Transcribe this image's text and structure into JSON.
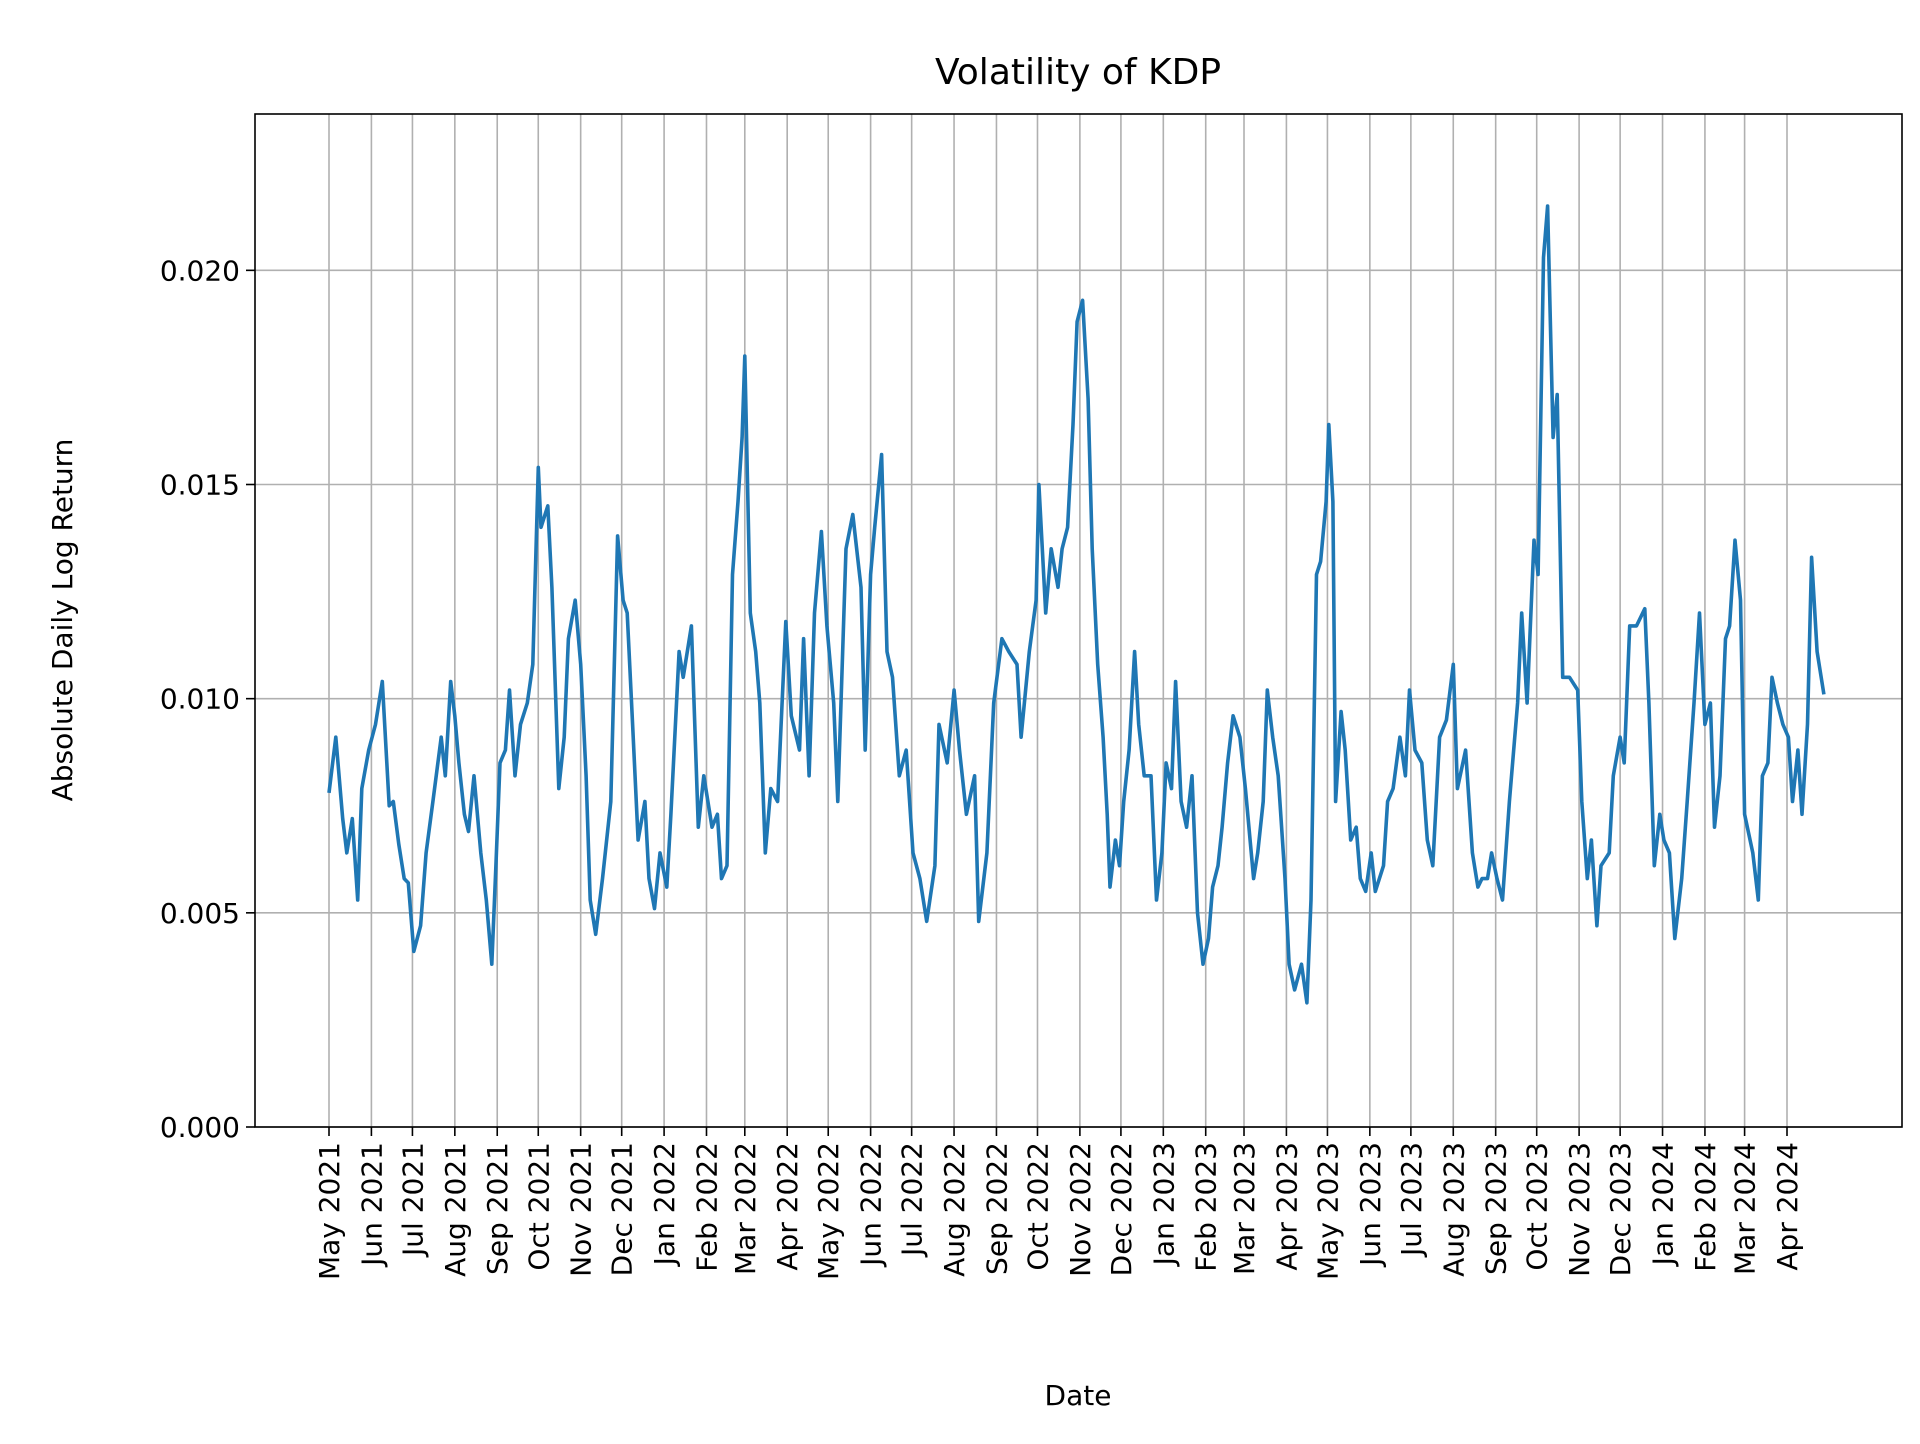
{
  "chart_data": {
    "type": "line",
    "title": "Volatility of KDP",
    "xlabel": "Date",
    "ylabel": "Absolute Daily Log Return",
    "ylim": [
      0,
      0.02365
    ],
    "yticks": [
      "0.000",
      "0.005",
      "0.010",
      "0.015",
      "0.020"
    ],
    "ytick_values": [
      0,
      0.005,
      0.01,
      0.015,
      0.02
    ],
    "xticks": [
      "May 2021",
      "Jun 2021",
      "Jul 2021",
      "Aug 2021",
      "Sep 2021",
      "Oct 2021",
      "Nov 2021",
      "Dec 2021",
      "Jan 2022",
      "Feb 2022",
      "Mar 2022",
      "Apr 2022",
      "May 2022",
      "Jun 2022",
      "Jul 2022",
      "Aug 2022",
      "Sep 2022",
      "Oct 2022",
      "Nov 2022",
      "Dec 2022",
      "Jan 2023",
      "Feb 2023",
      "Mar 2023",
      "Apr 2023",
      "May 2023",
      "Jun 2023",
      "Jul 2023",
      "Aug 2023",
      "Sep 2023",
      "Oct 2023",
      "Nov 2023",
      "Dec 2023",
      "Jan 2024",
      "Feb 2024",
      "Mar 2024",
      "Apr 2024"
    ],
    "xtick_dates": [
      "2021-05-01",
      "2021-06-01",
      "2021-07-01",
      "2021-08-01",
      "2021-09-01",
      "2021-10-01",
      "2021-11-01",
      "2021-12-01",
      "2022-01-01",
      "2022-02-01",
      "2022-03-01",
      "2022-04-01",
      "2022-05-01",
      "2022-06-01",
      "2022-07-01",
      "2022-08-01",
      "2022-09-01",
      "2022-10-01",
      "2022-11-01",
      "2022-12-01",
      "2023-01-01",
      "2023-02-01",
      "2023-03-01",
      "2023-04-01",
      "2023-05-01",
      "2023-06-01",
      "2023-07-01",
      "2023-08-01",
      "2023-09-01",
      "2023-10-01",
      "2023-11-01",
      "2023-12-01",
      "2024-01-01",
      "2024-02-01",
      "2024-03-01",
      "2024-04-01"
    ],
    "grid": true,
    "color": "#1f77b4",
    "series": [
      {
        "x": [
          "2021-05-01",
          "2021-05-06",
          "2021-05-11",
          "2021-05-14",
          "2021-05-18",
          "2021-05-22",
          "2021-05-25",
          "2021-05-30",
          "2021-06-04",
          "2021-06-09",
          "2021-06-14",
          "2021-06-17",
          "2021-06-21",
          "2021-06-25",
          "2021-06-28",
          "2021-07-02",
          "2021-07-07",
          "2021-07-11",
          "2021-07-16",
          "2021-07-22",
          "2021-07-25",
          "2021-07-29",
          "2021-08-01",
          "2021-08-04",
          "2021-08-08",
          "2021-08-11",
          "2021-08-15",
          "2021-08-20",
          "2021-08-24",
          "2021-08-28",
          "2021-08-31",
          "2021-09-03",
          "2021-09-07",
          "2021-09-10",
          "2021-09-14",
          "2021-09-18",
          "2021-09-23",
          "2021-09-27",
          "2021-10-01",
          "2021-10-03",
          "2021-10-08",
          "2021-10-11",
          "2021-10-16",
          "2021-10-20",
          "2021-10-23",
          "2021-10-28",
          "2021-11-01",
          "2021-11-05",
          "2021-11-08",
          "2021-11-12",
          "2021-11-17",
          "2021-11-23",
          "2021-11-28",
          "2021-12-02",
          "2021-12-05",
          "2021-12-09",
          "2021-12-13",
          "2021-12-18",
          "2021-12-21",
          "2021-12-25",
          "2021-12-29",
          "2022-01-03",
          "2022-01-06",
          "2022-01-12",
          "2022-01-15",
          "2022-01-21",
          "2022-01-26",
          "2022-01-30",
          "2022-02-05",
          "2022-02-09",
          "2022-02-12",
          "2022-02-16",
          "2022-02-20",
          "2022-02-24",
          "2022-02-27",
          "2022-03-01",
          "2022-03-05",
          "2022-03-09",
          "2022-03-12",
          "2022-03-16",
          "2022-03-20",
          "2022-03-25",
          "2022-03-31",
          "2022-04-04",
          "2022-04-10",
          "2022-04-13",
          "2022-04-17",
          "2022-04-21",
          "2022-04-26",
          "2022-04-30",
          "2022-05-05",
          "2022-05-08",
          "2022-05-14",
          "2022-05-19",
          "2022-05-25",
          "2022-05-28",
          "2022-06-01",
          "2022-06-04",
          "2022-06-09",
          "2022-06-13",
          "2022-06-17",
          "2022-06-22",
          "2022-06-27",
          "2022-07-02",
          "2022-07-07",
          "2022-07-12",
          "2022-07-18",
          "2022-07-21",
          "2022-07-27",
          "2022-08-01",
          "2022-08-05",
          "2022-08-10",
          "2022-08-16",
          "2022-08-19",
          "2022-08-25",
          "2022-08-30",
          "2022-09-05",
          "2022-09-10",
          "2022-09-16",
          "2022-09-19",
          "2022-09-25",
          "2022-09-30",
          "2022-10-02",
          "2022-10-07",
          "2022-10-11",
          "2022-10-16",
          "2022-10-19",
          "2022-10-23",
          "2022-10-27",
          "2022-10-30",
          "2022-11-03",
          "2022-11-07",
          "2022-11-10",
          "2022-11-14",
          "2022-11-18",
          "2022-11-21",
          "2022-11-23",
          "2022-11-27",
          "2022-11-30",
          "2022-12-03",
          "2022-12-07",
          "2022-12-11",
          "2022-12-14",
          "2022-12-18",
          "2022-12-23",
          "2022-12-27",
          "2022-12-31",
          "2023-01-03",
          "2023-01-07",
          "2023-01-10",
          "2023-01-14",
          "2023-01-18",
          "2023-01-22",
          "2023-01-26",
          "2023-01-30",
          "2023-02-03",
          "2023-02-06",
          "2023-02-10",
          "2023-02-13",
          "2023-02-17",
          "2023-02-21",
          "2023-02-26",
          "2023-03-02",
          "2023-03-08",
          "2023-03-11",
          "2023-03-15",
          "2023-03-18",
          "2023-03-22",
          "2023-03-26",
          "2023-03-31",
          "2023-04-03",
          "2023-04-07",
          "2023-04-12",
          "2023-04-16",
          "2023-04-19",
          "2023-04-23",
          "2023-04-26",
          "2023-04-30",
          "2023-05-02",
          "2023-05-05",
          "2023-05-07",
          "2023-05-11",
          "2023-05-14",
          "2023-05-18",
          "2023-05-22",
          "2023-05-25",
          "2023-05-29",
          "2023-06-02",
          "2023-06-05",
          "2023-06-11",
          "2023-06-14",
          "2023-06-18",
          "2023-06-23",
          "2023-06-27",
          "2023-06-30",
          "2023-07-04",
          "2023-07-09",
          "2023-07-13",
          "2023-07-17",
          "2023-07-22",
          "2023-07-27",
          "2023-08-01",
          "2023-08-04",
          "2023-08-10",
          "2023-08-15",
          "2023-08-19",
          "2023-08-22",
          "2023-08-26",
          "2023-08-29",
          "2023-09-02",
          "2023-09-06",
          "2023-09-11",
          "2023-09-17",
          "2023-09-20",
          "2023-09-24",
          "2023-09-29",
          "2023-10-02",
          "2023-10-06",
          "2023-10-09",
          "2023-10-13",
          "2023-10-16",
          "2023-10-20",
          "2023-10-25",
          "2023-10-31",
          "2023-11-03",
          "2023-11-07",
          "2023-11-10",
          "2023-11-14",
          "2023-11-17",
          "2023-11-23",
          "2023-11-26",
          "2023-12-01",
          "2023-12-04",
          "2023-12-08",
          "2023-12-13",
          "2023-12-19",
          "2023-12-22",
          "2023-12-26",
          "2023-12-30",
          "2024-01-02",
          "2024-01-06",
          "2024-01-10",
          "2024-01-15",
          "2024-01-19",
          "2024-01-24",
          "2024-01-28",
          "2024-02-01",
          "2024-02-05",
          "2024-02-08",
          "2024-02-12",
          "2024-02-16",
          "2024-02-19",
          "2024-02-23",
          "2024-02-27",
          "2024-03-01",
          "2024-03-07",
          "2024-03-11",
          "2024-03-14",
          "2024-03-18",
          "2024-03-21",
          "2024-03-25",
          "2024-03-29",
          "2024-04-02",
          "2024-04-05",
          "2024-04-09",
          "2024-04-12",
          "2024-04-16",
          "2024-04-19",
          "2024-04-23",
          "2024-04-28"
        ],
        "y": [
          0.0078,
          0.0091,
          0.0072,
          0.0064,
          0.0072,
          0.0053,
          0.0079,
          0.0088,
          0.0094,
          0.0104,
          0.0075,
          0.0076,
          0.0066,
          0.0058,
          0.0057,
          0.0041,
          0.0047,
          0.0064,
          0.0076,
          0.0091,
          0.0082,
          0.0104,
          0.0096,
          0.0085,
          0.0073,
          0.0069,
          0.0082,
          0.0064,
          0.0053,
          0.0038,
          0.0061,
          0.0085,
          0.0088,
          0.0102,
          0.0082,
          0.0094,
          0.0099,
          0.0108,
          0.0154,
          0.014,
          0.0145,
          0.0126,
          0.0079,
          0.0091,
          0.0114,
          0.0123,
          0.0108,
          0.0082,
          0.0053,
          0.0045,
          0.0058,
          0.0076,
          0.0138,
          0.0123,
          0.012,
          0.0094,
          0.0067,
          0.0076,
          0.0058,
          0.0051,
          0.0064,
          0.0056,
          0.0073,
          0.0111,
          0.0105,
          0.0117,
          0.007,
          0.0082,
          0.007,
          0.0073,
          0.0058,
          0.0061,
          0.0129,
          0.0146,
          0.0161,
          0.018,
          0.012,
          0.0111,
          0.0099,
          0.0064,
          0.0079,
          0.0076,
          0.0118,
          0.0096,
          0.0088,
          0.0114,
          0.0082,
          0.012,
          0.0139,
          0.0117,
          0.0099,
          0.0076,
          0.0135,
          0.0143,
          0.0126,
          0.0088,
          0.0129,
          0.014,
          0.0157,
          0.0111,
          0.0105,
          0.0082,
          0.0088,
          0.0064,
          0.0058,
          0.0048,
          0.0061,
          0.0094,
          0.0085,
          0.0102,
          0.0088,
          0.0073,
          0.0082,
          0.0048,
          0.0064,
          0.0099,
          0.0114,
          0.0111,
          0.0108,
          0.0091,
          0.0111,
          0.0123,
          0.015,
          0.012,
          0.0135,
          0.0126,
          0.0135,
          0.014,
          0.0164,
          0.0188,
          0.0193,
          0.017,
          0.0135,
          0.0108,
          0.0091,
          0.0073,
          0.0056,
          0.0067,
          0.0061,
          0.0076,
          0.0088,
          0.0111,
          0.0094,
          0.0082,
          0.0082,
          0.0053,
          0.0064,
          0.0085,
          0.0079,
          0.0104,
          0.0076,
          0.007,
          0.0082,
          0.005,
          0.0038,
          0.0044,
          0.0056,
          0.0061,
          0.007,
          0.0085,
          0.0096,
          0.0091,
          0.0079,
          0.0058,
          0.0064,
          0.0076,
          0.0102,
          0.0091,
          0.0082,
          0.0058,
          0.0038,
          0.0032,
          0.0038,
          0.0029,
          0.0053,
          0.0129,
          0.0132,
          0.0146,
          0.0164,
          0.0146,
          0.0076,
          0.0097,
          0.0088,
          0.0067,
          0.007,
          0.0058,
          0.0055,
          0.0064,
          0.0055,
          0.0061,
          0.0076,
          0.0079,
          0.0091,
          0.0082,
          0.0102,
          0.0088,
          0.0085,
          0.0067,
          0.0061,
          0.0091,
          0.0095,
          0.0108,
          0.0079,
          0.0088,
          0.0064,
          0.0056,
          0.0058,
          0.0058,
          0.0064,
          0.0058,
          0.0053,
          0.0076,
          0.0099,
          0.012,
          0.0099,
          0.0137,
          0.0129,
          0.0203,
          0.0215,
          0.0161,
          0.0171,
          0.0105,
          0.0105,
          0.0102,
          0.0076,
          0.0058,
          0.0067,
          0.0047,
          0.0061,
          0.0064,
          0.0082,
          0.0091,
          0.0085,
          0.0117,
          0.0117,
          0.0121,
          0.0099,
          0.0061,
          0.0073,
          0.0067,
          0.0064,
          0.0044,
          0.0058,
          0.0076,
          0.0099,
          0.012,
          0.0094,
          0.0099,
          0.007,
          0.0082,
          0.0114,
          0.0117,
          0.0137,
          0.0123,
          0.0073,
          0.0064,
          0.0053,
          0.0082,
          0.0085,
          0.0105,
          0.0099,
          0.0094,
          0.0091,
          0.0076,
          0.0088,
          0.0073,
          0.0094,
          0.0133,
          0.0111,
          0.0101
        ]
      }
    ]
  }
}
